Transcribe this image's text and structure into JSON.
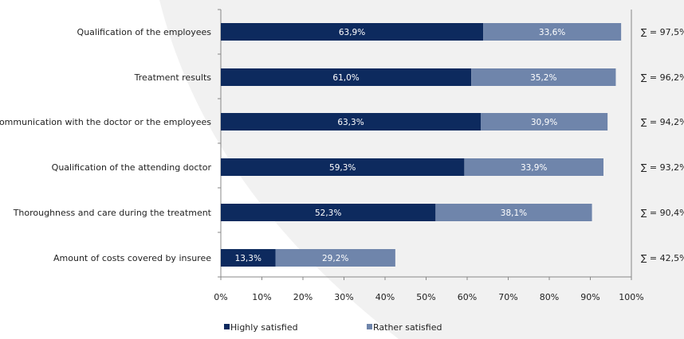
{
  "chart_data": {
    "type": "bar",
    "orientation": "horizontal",
    "stacked": true,
    "categories": [
      "Qualification of the employees",
      "Treatment results",
      "Communication with the doctor or the employees",
      "Qualification of the attending doctor",
      "Thoroughness and care during the treatment",
      "Amount of costs covered by insuree"
    ],
    "series": [
      {
        "name": "Highly satisfied",
        "color": "#0d2a5e",
        "values": [
          63.9,
          61.0,
          63.3,
          59.3,
          52.3,
          13.3
        ],
        "labels": [
          "63,9%",
          "61,0%",
          "63,3%",
          "59,3%",
          "52,3%",
          "13,3%"
        ]
      },
      {
        "name": "Rather satisfied",
        "color": "#6f85ab",
        "values": [
          33.6,
          35.2,
          30.9,
          33.9,
          38.1,
          29.2
        ],
        "labels": [
          "33,6%",
          "35,2%",
          "30,9%",
          "33,9%",
          "38,1%",
          "29,2%"
        ]
      }
    ],
    "totals": [
      "∑ = 97,5%",
      "∑ = 96,2%",
      "∑ = 94,2%",
      "∑ = 93,2%",
      "∑ = 90,4%",
      "∑ = 42,5%"
    ],
    "xlim": [
      0,
      100
    ],
    "xticks": [
      "0%",
      "10%",
      "20%",
      "30%",
      "40%",
      "50%",
      "60%",
      "70%",
      "80%",
      "90%",
      "100%"
    ],
    "grid": false,
    "legend": "bottom"
  }
}
